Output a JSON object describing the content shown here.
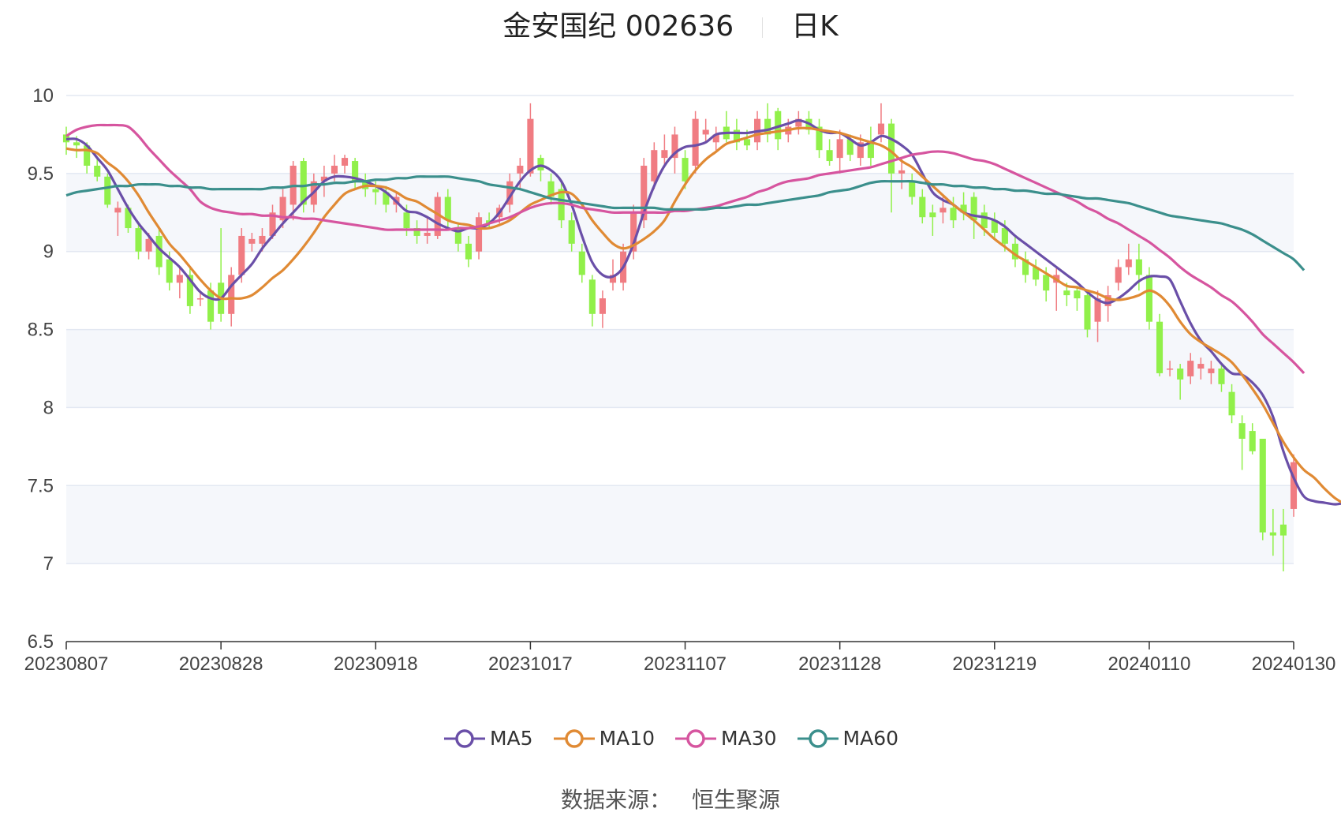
{
  "header": {
    "title": "金安国纪 002636",
    "period": "日K"
  },
  "legend": [
    {
      "label": "MA5",
      "color": "#6a4fa8"
    },
    {
      "label": "MA10",
      "color": "#e08a34"
    },
    {
      "label": "MA30",
      "color": "#d6559f"
    },
    {
      "label": "MA60",
      "color": "#3b8f8c"
    }
  ],
  "footer": {
    "label": "数据来源：",
    "source": "恒生聚源"
  },
  "colors": {
    "up": "#f07c82",
    "down": "#91f04a",
    "grid": "#e3e8f2",
    "band": "#f5f7fb",
    "axis": "#333333"
  },
  "chart_data": {
    "type": "candlestick",
    "ylim": [
      6.5,
      10
    ],
    "yticks": [
      "6.5",
      "7",
      "7.5",
      "8",
      "8.5",
      "9",
      "9.5",
      "10"
    ],
    "xticks": [
      {
        "label": "20230807",
        "i": 0
      },
      {
        "label": "20230828",
        "i": 15
      },
      {
        "label": "20230918",
        "i": 30
      },
      {
        "label": "20231017",
        "i": 45
      },
      {
        "label": "20231107",
        "i": 60
      },
      {
        "label": "20231128",
        "i": 75
      },
      {
        "label": "20231219",
        "i": 90
      },
      {
        "label": "20240110",
        "i": 105
      },
      {
        "label": "20240130",
        "i": 119
      }
    ],
    "candles": [
      [
        9.75,
        9.7,
        9.8,
        9.62
      ],
      [
        9.7,
        9.68,
        9.74,
        9.6
      ],
      [
        9.68,
        9.55,
        9.7,
        9.5
      ],
      [
        9.55,
        9.48,
        9.6,
        9.45
      ],
      [
        9.48,
        9.3,
        9.5,
        9.28
      ],
      [
        9.25,
        9.28,
        9.32,
        9.1
      ],
      [
        9.28,
        9.15,
        9.3,
        9.12
      ],
      [
        9.15,
        9.0,
        9.18,
        8.95
      ],
      [
        9.0,
        9.08,
        9.12,
        8.95
      ],
      [
        9.1,
        8.9,
        9.15,
        8.85
      ],
      [
        8.95,
        8.8,
        9.0,
        8.75
      ],
      [
        8.8,
        8.85,
        8.9,
        8.7
      ],
      [
        8.85,
        8.65,
        8.9,
        8.6
      ],
      [
        8.7,
        8.7,
        8.75,
        8.65
      ],
      [
        8.75,
        8.55,
        8.8,
        8.5
      ],
      [
        8.8,
        8.6,
        9.15,
        8.55
      ],
      [
        8.6,
        8.85,
        8.9,
        8.52
      ],
      [
        8.85,
        9.1,
        9.15,
        8.8
      ],
      [
        9.05,
        9.08,
        9.12,
        9.0
      ],
      [
        9.05,
        9.1,
        9.15,
        9.0
      ],
      [
        9.1,
        9.25,
        9.3,
        9.08
      ],
      [
        9.2,
        9.35,
        9.4,
        9.15
      ],
      [
        9.3,
        9.55,
        9.58,
        9.2
      ],
      [
        9.58,
        9.3,
        9.6,
        9.25
      ],
      [
        9.3,
        9.45,
        9.5,
        9.25
      ],
      [
        9.45,
        9.48,
        9.55,
        9.35
      ],
      [
        9.5,
        9.55,
        9.62,
        9.45
      ],
      [
        9.55,
        9.6,
        9.62,
        9.5
      ],
      [
        9.58,
        9.45,
        9.6,
        9.4
      ],
      [
        9.45,
        9.4,
        9.5,
        9.35
      ],
      [
        9.4,
        9.38,
        9.45,
        9.3
      ],
      [
        9.38,
        9.3,
        9.42,
        9.25
      ],
      [
        9.3,
        9.35,
        9.38,
        9.25
      ],
      [
        9.25,
        9.15,
        9.3,
        9.1
      ],
      [
        9.15,
        9.1,
        9.2,
        9.05
      ],
      [
        9.1,
        9.12,
        9.22,
        9.05
      ],
      [
        9.1,
        9.35,
        9.38,
        9.08
      ],
      [
        9.35,
        9.2,
        9.4,
        9.15
      ],
      [
        9.15,
        9.05,
        9.18,
        9.0
      ],
      [
        9.05,
        8.95,
        9.1,
        8.9
      ],
      [
        9.0,
        9.22,
        9.25,
        8.95
      ],
      [
        9.2,
        9.18,
        9.25,
        9.15
      ],
      [
        9.22,
        9.28,
        9.3,
        9.18
      ],
      [
        9.3,
        9.45,
        9.5,
        9.25
      ],
      [
        9.5,
        9.55,
        9.6,
        9.4
      ],
      [
        9.5,
        9.85,
        9.95,
        9.48
      ],
      [
        9.6,
        9.52,
        9.62,
        9.45
      ],
      [
        9.45,
        9.35,
        9.5,
        9.3
      ],
      [
        9.4,
        9.2,
        9.45,
        9.15
      ],
      [
        9.2,
        9.05,
        9.25,
        9.0
      ],
      [
        9.0,
        8.85,
        9.05,
        8.8
      ],
      [
        8.82,
        8.6,
        8.85,
        8.52
      ],
      [
        8.6,
        8.7,
        8.75,
        8.51
      ],
      [
        8.8,
        8.85,
        8.95,
        8.75
      ],
      [
        8.8,
        9.0,
        9.05,
        8.75
      ],
      [
        9.0,
        9.25,
        9.3,
        8.95
      ],
      [
        9.2,
        9.55,
        9.6,
        9.15
      ],
      [
        9.45,
        9.65,
        9.7,
        9.4
      ],
      [
        9.6,
        9.65,
        9.75,
        9.55
      ],
      [
        9.6,
        9.75,
        9.8,
        9.5
      ],
      [
        9.6,
        9.45,
        9.65,
        9.4
      ],
      [
        9.55,
        9.85,
        9.9,
        9.5
      ],
      [
        9.75,
        9.78,
        9.85,
        9.7
      ],
      [
        9.7,
        9.75,
        9.8,
        9.65
      ],
      [
        9.8,
        9.72,
        9.9,
        9.7
      ],
      [
        9.78,
        9.7,
        9.85,
        9.65
      ],
      [
        9.72,
        9.68,
        9.78,
        9.65
      ],
      [
        9.7,
        9.85,
        9.9,
        9.65
      ],
      [
        9.85,
        9.75,
        9.95,
        9.7
      ],
      [
        9.9,
        9.72,
        9.92,
        9.65
      ],
      [
        9.75,
        9.8,
        9.85,
        9.7
      ],
      [
        9.8,
        9.85,
        9.9,
        9.75
      ],
      [
        9.85,
        9.78,
        9.9,
        9.75
      ],
      [
        9.8,
        9.65,
        9.85,
        9.6
      ],
      [
        9.65,
        9.58,
        9.72,
        9.55
      ],
      [
        9.6,
        9.72,
        9.78,
        9.5
      ],
      [
        9.72,
        9.62,
        9.75,
        9.58
      ],
      [
        9.6,
        9.7,
        9.75,
        9.55
      ],
      [
        9.7,
        9.6,
        9.8,
        9.55
      ],
      [
        9.75,
        9.82,
        9.95,
        9.7
      ],
      [
        9.82,
        9.5,
        9.85,
        9.25
      ],
      [
        9.5,
        9.52,
        9.6,
        9.4
      ],
      [
        9.45,
        9.35,
        9.5,
        9.3
      ],
      [
        9.35,
        9.22,
        9.4,
        9.18
      ],
      [
        9.25,
        9.22,
        9.3,
        9.1
      ],
      [
        9.25,
        9.28,
        9.35,
        9.18
      ],
      [
        9.28,
        9.2,
        9.35,
        9.15
      ],
      [
        9.3,
        9.25,
        9.38,
        9.2
      ],
      [
        9.35,
        9.2,
        9.38,
        9.08
      ],
      [
        9.25,
        9.15,
        9.3,
        9.1
      ],
      [
        9.2,
        9.12,
        9.25,
        9.08
      ],
      [
        9.15,
        9.05,
        9.2,
        9.0
      ],
      [
        9.05,
        8.95,
        9.1,
        8.9
      ],
      [
        8.95,
        8.85,
        9.0,
        8.8
      ],
      [
        8.9,
        8.82,
        8.95,
        8.78
      ],
      [
        8.85,
        8.75,
        8.9,
        8.68
      ],
      [
        8.8,
        8.85,
        8.9,
        8.62
      ],
      [
        8.75,
        8.72,
        8.8,
        8.65
      ],
      [
        8.75,
        8.7,
        8.78,
        8.62
      ],
      [
        8.72,
        8.5,
        8.75,
        8.45
      ],
      [
        8.55,
        8.7,
        8.75,
        8.42
      ],
      [
        8.65,
        8.72,
        8.78,
        8.55
      ],
      [
        8.8,
        8.9,
        8.95,
        8.75
      ],
      [
        8.9,
        8.95,
        9.05,
        8.85
      ],
      [
        8.95,
        8.85,
        9.05,
        8.75
      ],
      [
        8.85,
        8.55,
        8.9,
        8.5
      ],
      [
        8.55,
        8.22,
        8.6,
        8.2
      ],
      [
        8.25,
        8.25,
        8.3,
        8.2
      ],
      [
        8.25,
        8.18,
        8.28,
        8.05
      ],
      [
        8.2,
        8.3,
        8.35,
        8.15
      ],
      [
        8.25,
        8.28,
        8.32,
        8.18
      ],
      [
        8.22,
        8.25,
        8.3,
        8.15
      ],
      [
        8.25,
        8.15,
        8.28,
        8.1
      ],
      [
        8.1,
        7.95,
        8.15,
        7.9
      ],
      [
        7.9,
        7.8,
        7.95,
        7.6
      ],
      [
        7.85,
        7.72,
        7.9,
        7.7
      ],
      [
        7.8,
        7.2,
        7.8,
        7.15
      ],
      [
        7.2,
        7.18,
        7.35,
        7.05
      ],
      [
        7.25,
        7.18,
        7.35,
        6.95
      ],
      [
        7.35,
        7.65,
        7.7,
        7.3
      ]
    ],
    "series": [
      {
        "name": "MA5",
        "values": [
          9.72,
          9.72,
          9.68,
          9.6,
          9.52,
          9.4,
          9.28,
          9.18,
          9.1,
          9.02,
          8.96,
          8.9,
          8.82,
          8.74,
          8.7,
          8.7,
          8.78,
          8.85,
          8.92,
          9.02,
          9.1,
          9.18,
          9.25,
          9.32,
          9.38,
          9.45,
          9.48,
          9.48,
          9.47,
          9.45,
          9.42,
          9.38,
          9.32,
          9.26,
          9.25,
          9.22,
          9.18,
          9.15,
          9.13,
          9.15,
          9.15,
          9.18,
          9.25,
          9.35,
          9.45,
          9.52,
          9.55,
          9.52,
          9.45,
          9.3,
          9.1,
          8.93,
          8.85,
          8.84,
          8.9,
          9.05,
          9.25,
          9.42,
          9.55,
          9.63,
          9.67,
          9.68,
          9.7,
          9.75,
          9.76,
          9.76,
          9.76,
          9.77,
          9.78,
          9.8,
          9.82,
          9.84,
          9.82,
          9.78,
          9.76,
          9.76,
          9.72,
          9.68,
          9.7,
          9.74,
          9.72,
          9.68,
          9.62,
          9.5,
          9.38,
          9.33,
          9.3,
          9.25,
          9.23,
          9.22,
          9.2,
          9.16,
          9.1,
          9.05,
          9.0,
          8.95,
          8.9,
          8.85,
          8.8,
          8.74,
          8.69,
          8.67,
          8.7,
          8.75,
          8.81,
          8.84,
          8.84,
          8.82,
          8.68,
          8.54,
          8.43,
          8.36,
          8.28,
          8.22,
          8.21,
          8.16,
          8.08,
          7.94,
          7.72,
          7.55,
          7.43,
          7.4,
          7.39,
          7.38,
          7.39
        ]
      },
      {
        "name": "MA10",
        "values": [
          9.66,
          9.65,
          9.65,
          9.63,
          9.57,
          9.52,
          9.45,
          9.36,
          9.25,
          9.15,
          9.05,
          8.98,
          8.9,
          8.82,
          8.75,
          8.7,
          8.7,
          8.7,
          8.72,
          8.77,
          8.83,
          8.88,
          8.95,
          9.03,
          9.12,
          9.22,
          9.3,
          9.37,
          9.4,
          9.42,
          9.42,
          9.41,
          9.38,
          9.34,
          9.32,
          9.28,
          9.24,
          9.2,
          9.18,
          9.17,
          9.15,
          9.15,
          9.17,
          9.2,
          9.25,
          9.3,
          9.33,
          9.36,
          9.38,
          9.37,
          9.3,
          9.2,
          9.12,
          9.05,
          9.02,
          9.04,
          9.08,
          9.13,
          9.2,
          9.32,
          9.43,
          9.52,
          9.59,
          9.64,
          9.69,
          9.71,
          9.73,
          9.75,
          9.76,
          9.77,
          9.78,
          9.79,
          9.79,
          9.78,
          9.77,
          9.76,
          9.74,
          9.72,
          9.7,
          9.68,
          9.64,
          9.58,
          9.54,
          9.48,
          9.42,
          9.36,
          9.3,
          9.25,
          9.2,
          9.14,
          9.08,
          9.03,
          8.98,
          8.94,
          8.9,
          8.86,
          8.82,
          8.78,
          8.77,
          8.75,
          8.73,
          8.7,
          8.69,
          8.7,
          8.72,
          8.75,
          8.72,
          8.65,
          8.55,
          8.47,
          8.42,
          8.38,
          8.34,
          8.29,
          8.21,
          8.12,
          8.02,
          7.9,
          7.78,
          7.68,
          7.6,
          7.55,
          7.48,
          7.42,
          7.38
        ]
      },
      {
        "name": "MA30",
        "values": [
          9.74,
          9.78,
          9.8,
          9.81,
          9.81,
          9.81,
          9.8,
          9.74,
          9.66,
          9.59,
          9.52,
          9.46,
          9.4,
          9.32,
          9.28,
          9.26,
          9.25,
          9.24,
          9.24,
          9.23,
          9.23,
          9.22,
          9.22,
          9.21,
          9.21,
          9.2,
          9.19,
          9.18,
          9.17,
          9.16,
          9.15,
          9.14,
          9.14,
          9.14,
          9.14,
          9.14,
          9.14,
          9.14,
          9.15,
          9.15,
          9.16,
          9.18,
          9.2,
          9.22,
          9.25,
          9.28,
          9.3,
          9.31,
          9.31,
          9.3,
          9.28,
          9.27,
          9.26,
          9.25,
          9.25,
          9.25,
          9.25,
          9.25,
          9.25,
          9.26,
          9.26,
          9.27,
          9.28,
          9.29,
          9.31,
          9.33,
          9.35,
          9.38,
          9.4,
          9.43,
          9.45,
          9.46,
          9.47,
          9.49,
          9.5,
          9.51,
          9.52,
          9.53,
          9.54,
          9.56,
          9.58,
          9.6,
          9.62,
          9.63,
          9.64,
          9.64,
          9.63,
          9.61,
          9.59,
          9.58,
          9.56,
          9.53,
          9.5,
          9.47,
          9.44,
          9.41,
          9.38,
          9.35,
          9.32,
          9.28,
          9.25,
          9.21,
          9.18,
          9.14,
          9.1,
          9.06,
          9.01,
          8.96,
          8.9,
          8.85,
          8.81,
          8.77,
          8.72,
          8.68,
          8.62,
          8.55,
          8.47,
          8.41,
          8.35,
          8.29,
          8.22
        ]
      },
      {
        "name": "MA60",
        "values": [
          9.36,
          9.38,
          9.39,
          9.4,
          9.41,
          9.42,
          9.42,
          9.43,
          9.43,
          9.43,
          9.42,
          9.42,
          9.41,
          9.41,
          9.4,
          9.4,
          9.4,
          9.4,
          9.4,
          9.4,
          9.41,
          9.41,
          9.42,
          9.42,
          9.43,
          9.43,
          9.44,
          9.44,
          9.45,
          9.45,
          9.46,
          9.46,
          9.47,
          9.47,
          9.48,
          9.48,
          9.48,
          9.48,
          9.47,
          9.46,
          9.45,
          9.43,
          9.42,
          9.41,
          9.4,
          9.38,
          9.36,
          9.34,
          9.33,
          9.32,
          9.31,
          9.3,
          9.29,
          9.28,
          9.28,
          9.28,
          9.28,
          9.28,
          9.27,
          9.27,
          9.27,
          9.27,
          9.27,
          9.28,
          9.28,
          9.29,
          9.3,
          9.3,
          9.31,
          9.32,
          9.33,
          9.34,
          9.35,
          9.36,
          9.38,
          9.39,
          9.4,
          9.42,
          9.44,
          9.45,
          9.45,
          9.45,
          9.45,
          9.44,
          9.43,
          9.43,
          9.42,
          9.42,
          9.41,
          9.41,
          9.4,
          9.4,
          9.39,
          9.39,
          9.38,
          9.37,
          9.37,
          9.36,
          9.35,
          9.34,
          9.34,
          9.33,
          9.32,
          9.31,
          9.29,
          9.27,
          9.25,
          9.23,
          9.22,
          9.21,
          9.2,
          9.19,
          9.18,
          9.16,
          9.14,
          9.11,
          9.07,
          9.03,
          8.99,
          8.95,
          8.88
        ]
      }
    ]
  }
}
